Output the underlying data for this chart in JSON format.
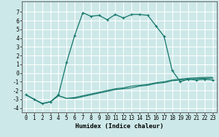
{
  "title": "",
  "xlabel": "Humidex (Indice chaleur)",
  "ylabel": "",
  "bg_color": "#cde8e8",
  "line_color": "#1a7a6e",
  "grid_color": "#ffffff",
  "x_ticks": [
    0,
    1,
    2,
    3,
    4,
    5,
    6,
    7,
    8,
    9,
    10,
    11,
    12,
    13,
    14,
    15,
    16,
    17,
    18,
    19,
    20,
    21,
    22,
    23
  ],
  "ylim": [
    -4.5,
    8.2
  ],
  "xlim": [
    -0.5,
    23.5
  ],
  "y_ticks": [
    -4,
    -3,
    -2,
    -1,
    0,
    1,
    2,
    3,
    4,
    5,
    6,
    7
  ],
  "line1_x": [
    0,
    1,
    2,
    3,
    4,
    5,
    6,
    7,
    8,
    9,
    10,
    11,
    12,
    13,
    14,
    15,
    16,
    17,
    18,
    19,
    20,
    21,
    22,
    23
  ],
  "line1_y": [
    -2.5,
    -3.0,
    -3.5,
    -3.3,
    -2.5,
    1.2,
    4.3,
    6.9,
    6.5,
    6.6,
    6.1,
    6.7,
    6.3,
    6.7,
    6.7,
    6.6,
    5.4,
    4.2,
    0.3,
    -1.0,
    -0.7,
    -0.8,
    -0.7,
    -0.8
  ],
  "line2_x": [
    0,
    1,
    2,
    3,
    4,
    5,
    6,
    7,
    8,
    9,
    10,
    11,
    12,
    13,
    14,
    15,
    16,
    17,
    18,
    19,
    20,
    21,
    22,
    23
  ],
  "line2_y": [
    -2.5,
    -3.0,
    -3.5,
    -3.3,
    -2.6,
    -2.9,
    -2.8,
    -2.6,
    -2.4,
    -2.2,
    -2.0,
    -1.8,
    -1.7,
    -1.5,
    -1.4,
    -1.3,
    -1.1,
    -1.0,
    -0.8,
    -0.7,
    -0.6,
    -0.55,
    -0.5,
    -0.5
  ],
  "line3_x": [
    0,
    1,
    2,
    3,
    4,
    5,
    6,
    7,
    8,
    9,
    10,
    11,
    12,
    13,
    14,
    15,
    16,
    17,
    18,
    19,
    20,
    21,
    22,
    23
  ],
  "line3_y": [
    -2.5,
    -3.0,
    -3.5,
    -3.3,
    -2.6,
    -2.9,
    -2.9,
    -2.7,
    -2.5,
    -2.3,
    -2.1,
    -1.9,
    -1.8,
    -1.7,
    -1.5,
    -1.4,
    -1.2,
    -1.1,
    -0.9,
    -0.8,
    -0.7,
    -0.65,
    -0.6,
    -0.6
  ],
  "tick_fontsize": 5.5,
  "xlabel_fontsize": 6.5
}
